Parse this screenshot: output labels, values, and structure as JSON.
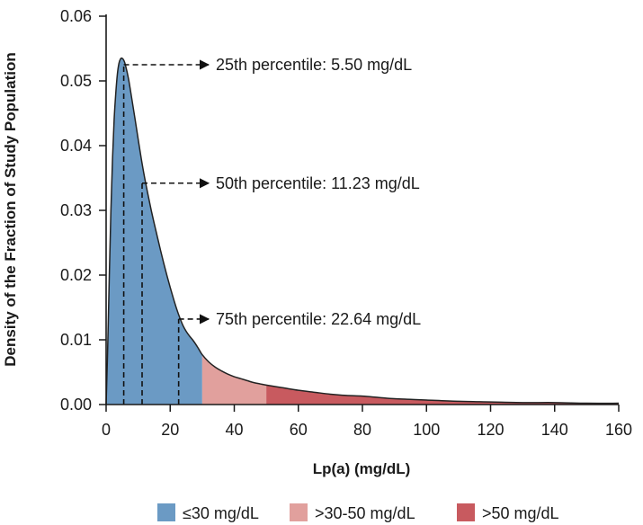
{
  "chart_data": {
    "type": "area",
    "xlabel": "Lp(a) (mg/dL)",
    "ylabel": "Density of the Fraction of Study Population",
    "xlim": [
      0,
      160
    ],
    "ylim": [
      0,
      0.06
    ],
    "x_ticks": [
      "0",
      "20",
      "40",
      "60",
      "80",
      "100",
      "120",
      "140",
      "160"
    ],
    "y_ticks": [
      "0.00",
      "0.01",
      "0.02",
      "0.03",
      "0.04",
      "0.05",
      "0.06"
    ],
    "x_tick_values": [
      0,
      20,
      40,
      60,
      80,
      100,
      120,
      140,
      160
    ],
    "y_tick_values": [
      0,
      0.01,
      0.02,
      0.03,
      0.04,
      0.05,
      0.06
    ],
    "grid": false,
    "legend_position": "bottom",
    "curve": [
      [
        0,
        0.0
      ],
      [
        0.5,
        0.009
      ],
      [
        1,
        0.02
      ],
      [
        1.5,
        0.03
      ],
      [
        2,
        0.038
      ],
      [
        2.5,
        0.044
      ],
      [
        3,
        0.048
      ],
      [
        3.5,
        0.051
      ],
      [
        4,
        0.0527
      ],
      [
        4.5,
        0.0534
      ],
      [
        5,
        0.0535
      ],
      [
        5.5,
        0.0532
      ],
      [
        6,
        0.0525
      ],
      [
        7,
        0.0503
      ],
      [
        8,
        0.0473
      ],
      [
        9,
        0.0442
      ],
      [
        10,
        0.041
      ],
      [
        11,
        0.0379
      ],
      [
        12,
        0.0351
      ],
      [
        13,
        0.0326
      ],
      [
        14,
        0.0302
      ],
      [
        15,
        0.028
      ],
      [
        16,
        0.0259
      ],
      [
        17,
        0.0238
      ],
      [
        18,
        0.0218
      ],
      [
        19,
        0.0199
      ],
      [
        20,
        0.0181
      ],
      [
        21,
        0.0164
      ],
      [
        22,
        0.0148
      ],
      [
        23,
        0.0134
      ],
      [
        24,
        0.0122
      ],
      [
        25,
        0.0113
      ],
      [
        26,
        0.0106
      ],
      [
        27,
        0.01
      ],
      [
        28,
        0.0093
      ],
      [
        29,
        0.0085
      ],
      [
        30,
        0.0077
      ],
      [
        32,
        0.0066
      ],
      [
        34,
        0.0058
      ],
      [
        36,
        0.0052
      ],
      [
        38,
        0.0047
      ],
      [
        40,
        0.0043
      ],
      [
        42,
        0.004
      ],
      [
        44,
        0.0037
      ],
      [
        46,
        0.0034
      ],
      [
        48,
        0.0032
      ],
      [
        50,
        0.003
      ],
      [
        55,
        0.0026
      ],
      [
        60,
        0.0022
      ],
      [
        65,
        0.0019
      ],
      [
        70,
        0.0016
      ],
      [
        75,
        0.0014
      ],
      [
        80,
        0.0013
      ],
      [
        85,
        0.0011
      ],
      [
        90,
        0.0009
      ],
      [
        95,
        0.0008
      ],
      [
        100,
        0.0007
      ],
      [
        110,
        0.0005
      ],
      [
        120,
        0.0004
      ],
      [
        130,
        0.0003
      ],
      [
        140,
        0.0003
      ],
      [
        150,
        0.0002
      ],
      [
        160,
        0.0002
      ]
    ],
    "regions": [
      {
        "label": "≤30 mg/dL",
        "from": 0,
        "to": 30,
        "color": "#6b9ac4"
      },
      {
        "label": ">30-50 mg/dL",
        "from": 30,
        "to": 50,
        "color": "#e1a09d"
      },
      {
        "label": ">50 mg/dL",
        "from": 50,
        "to": 160,
        "color": "#c85a5f"
      }
    ],
    "annotations": [
      {
        "label": "25th percentile: 5.50 mg/dL",
        "x": 5.5,
        "line_top": 0.0525,
        "arrow_y": 0.0525
      },
      {
        "label": "50th percentile: 11.23 mg/dL",
        "x": 11.23,
        "line_top": 0.0342,
        "arrow_y": 0.0342
      },
      {
        "label": "75th percentile: 22.64 mg/dL",
        "x": 22.64,
        "line_top": 0.0132,
        "arrow_y": 0.0132
      }
    ],
    "colors": {
      "axis": "#1a1a1a",
      "outline": "#222222",
      "dash": "#111111"
    }
  }
}
